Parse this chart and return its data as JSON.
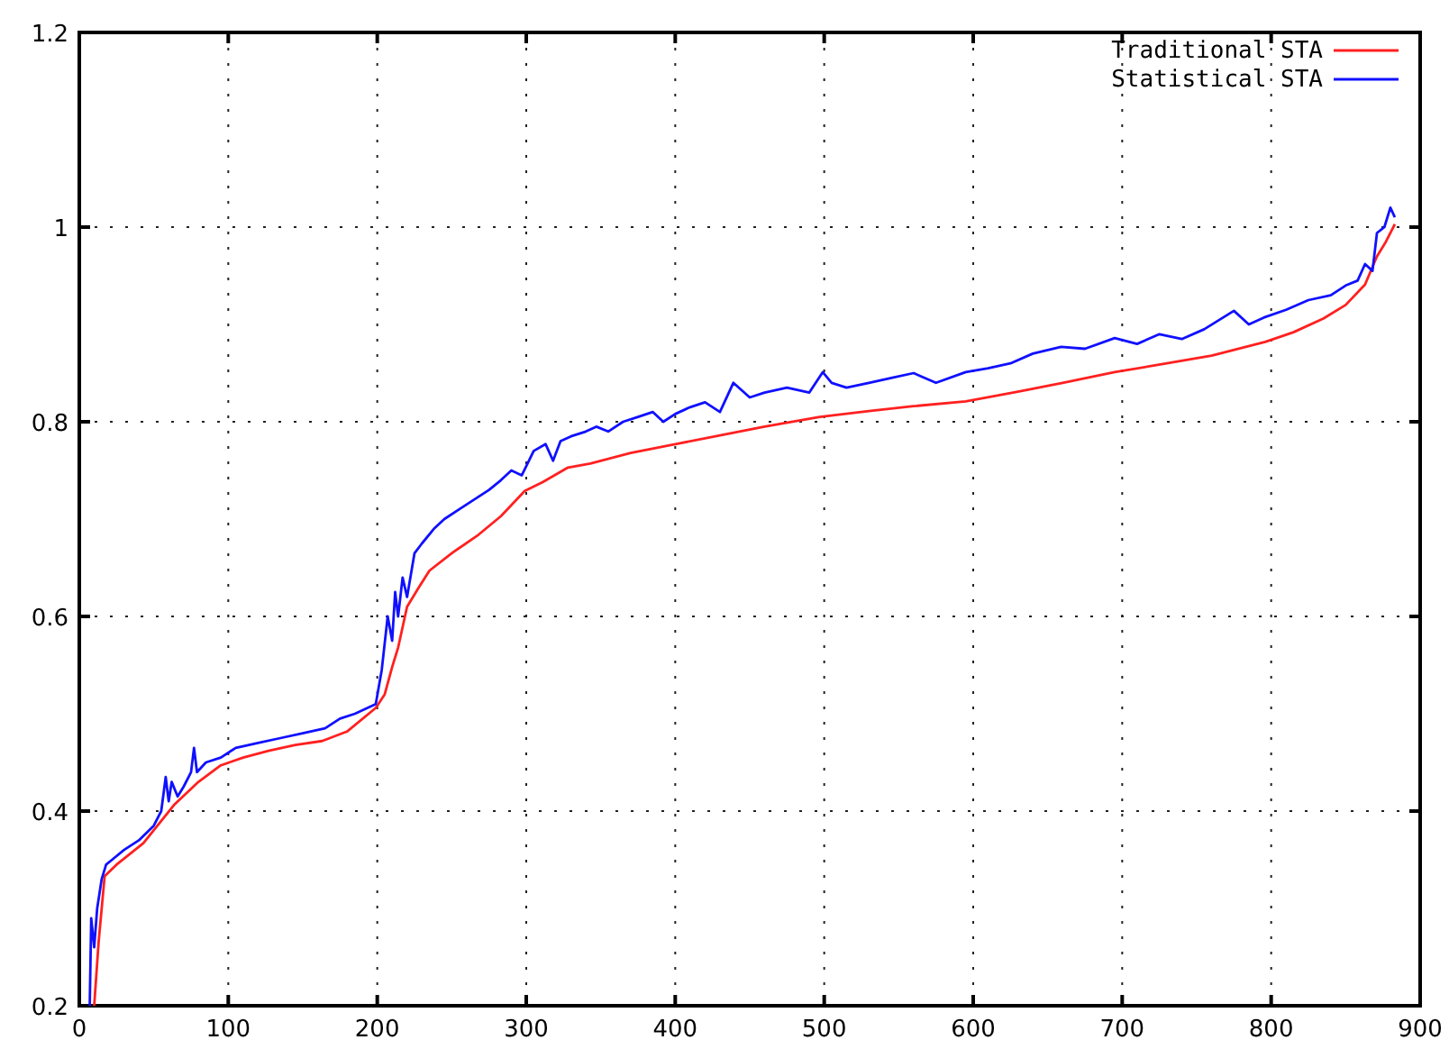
{
  "chart_data": {
    "type": "line",
    "xlim": [
      0,
      900
    ],
    "ylim": [
      0.2,
      1.2
    ],
    "xticks": [
      0,
      100,
      200,
      300,
      400,
      500,
      600,
      700,
      800,
      900
    ],
    "yticks": [
      0.2,
      0.4,
      0.6,
      0.8,
      1,
      1.2
    ],
    "grid": true,
    "legend": "top right",
    "marker": "none",
    "line_style": "solid",
    "series": [
      {
        "name": "Traditional STA",
        "color": "#ff2020",
        "x": [
          10,
          13,
          17,
          25,
          43,
          64,
          80,
          95,
          110,
          127,
          145,
          163,
          180,
          199,
          205,
          210,
          214,
          220,
          228,
          235,
          250,
          268,
          283,
          299,
          311,
          328,
          343,
          370,
          400,
          430,
          460,
          497,
          530,
          560,
          595,
          630,
          660,
          695,
          730,
          760,
          796,
          815,
          835,
          850,
          863,
          871,
          877,
          883
        ],
        "values": [
          0.2,
          0.266,
          0.333,
          0.345,
          0.367,
          0.407,
          0.43,
          0.447,
          0.455,
          0.462,
          0.468,
          0.472,
          0.482,
          0.506,
          0.52,
          0.548,
          0.568,
          0.61,
          0.63,
          0.647,
          0.665,
          0.684,
          0.703,
          0.729,
          0.738,
          0.753,
          0.757,
          0.768,
          0.777,
          0.786,
          0.795,
          0.805,
          0.811,
          0.816,
          0.821,
          0.831,
          0.84,
          0.851,
          0.86,
          0.868,
          0.882,
          0.892,
          0.906,
          0.92,
          0.941,
          0.97,
          0.985,
          1.003
        ]
      },
      {
        "name": "Statistical STA",
        "color": "#1010ff",
        "x": [
          7,
          8,
          10,
          12,
          15,
          18,
          22,
          30,
          40,
          50,
          55,
          58,
          60,
          62,
          66,
          70,
          75,
          77,
          79,
          85,
          95,
          105,
          120,
          135,
          150,
          165,
          175,
          185,
          199,
          203,
          207,
          210,
          212,
          214,
          217,
          220,
          225,
          230,
          238,
          245,
          255,
          265,
          275,
          283,
          290,
          297,
          305,
          313,
          318,
          323,
          330,
          340,
          347,
          355,
          365,
          375,
          385,
          392,
          400,
          410,
          420,
          430,
          439,
          450,
          460,
          475,
          490,
          499,
          505,
          515,
          530,
          545,
          560,
          575,
          595,
          610,
          625,
          640,
          659,
          675,
          695,
          710,
          725,
          740,
          755,
          775,
          785,
          795,
          810,
          825,
          840,
          850,
          858,
          863,
          868,
          871,
          876,
          880,
          883
        ],
        "values": [
          0.2,
          0.29,
          0.26,
          0.3,
          0.33,
          0.345,
          0.35,
          0.36,
          0.37,
          0.385,
          0.4,
          0.435,
          0.41,
          0.43,
          0.415,
          0.425,
          0.44,
          0.465,
          0.44,
          0.45,
          0.455,
          0.465,
          0.47,
          0.475,
          0.48,
          0.485,
          0.495,
          0.5,
          0.51,
          0.545,
          0.6,
          0.575,
          0.625,
          0.6,
          0.64,
          0.62,
          0.665,
          0.675,
          0.69,
          0.7,
          0.71,
          0.72,
          0.73,
          0.74,
          0.75,
          0.745,
          0.77,
          0.777,
          0.76,
          0.78,
          0.785,
          0.79,
          0.795,
          0.79,
          0.8,
          0.805,
          0.81,
          0.8,
          0.808,
          0.815,
          0.82,
          0.81,
          0.84,
          0.825,
          0.83,
          0.835,
          0.83,
          0.851,
          0.84,
          0.835,
          0.84,
          0.845,
          0.85,
          0.84,
          0.851,
          0.855,
          0.86,
          0.87,
          0.877,
          0.875,
          0.886,
          0.88,
          0.89,
          0.885,
          0.895,
          0.914,
          0.9,
          0.907,
          0.915,
          0.925,
          0.93,
          0.94,
          0.945,
          0.962,
          0.955,
          0.994,
          1.0,
          1.02,
          1.01
        ]
      }
    ]
  }
}
